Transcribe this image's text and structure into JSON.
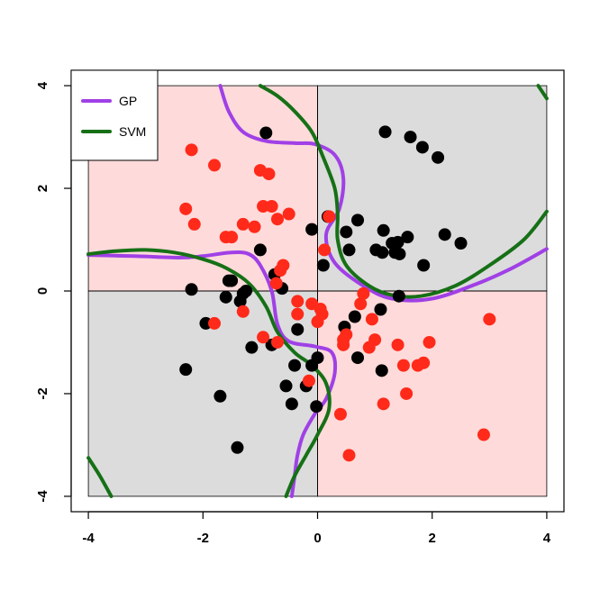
{
  "chart_data": {
    "type": "scatter",
    "title": "",
    "xlabel": "",
    "ylabel": "",
    "xlim": [
      -4.3,
      4.3
    ],
    "ylim": [
      -4.3,
      4.3
    ],
    "xticks": [
      -4,
      -2,
      0,
      2,
      4
    ],
    "yticks": [
      -4,
      -2,
      0,
      2,
      4
    ],
    "xtick_labels": [
      "-4",
      "-2",
      "0",
      "2",
      "4"
    ],
    "ytick_labels": [
      "-4",
      "-2",
      "0",
      "2",
      "4"
    ],
    "grid": false,
    "legend_position": "top-left",
    "regions": [
      {
        "class": "red",
        "x": [
          -4,
          0
        ],
        "y": [
          0,
          4
        ],
        "color": "#ffdada"
      },
      {
        "class": "black",
        "x": [
          0,
          4
        ],
        "y": [
          0,
          4
        ],
        "color": "#dcdcdc"
      },
      {
        "class": "black",
        "x": [
          -4,
          0
        ],
        "y": [
          -4,
          0
        ],
        "color": "#dcdcdc"
      },
      {
        "class": "red",
        "x": [
          0,
          4
        ],
        "y": [
          -4,
          0
        ],
        "color": "#ffdada"
      }
    ],
    "points": [
      {
        "name": "black",
        "color": "#000000",
        "x": [
          -0.9,
          1.18,
          1.62,
          1.83,
          2.1,
          -1.0,
          0.18,
          0.7,
          0.5,
          1.15,
          1.4,
          1.57,
          1.3,
          0.55,
          1.02,
          1.13,
          1.35,
          1.43,
          2.22,
          2.5,
          0.1,
          1.85,
          -0.1,
          -2.2,
          -1.55,
          -1.35,
          -1.3,
          -1.6,
          -0.75,
          -0.62,
          -1.5,
          -1.25,
          -0.35,
          -1.95,
          -1.15,
          -0.8,
          0.65,
          0.47,
          0.7,
          1.1,
          1.42,
          0.0,
          -0.1,
          -0.55,
          -0.4,
          -0.2,
          -0.45,
          -2.3,
          -1.7,
          -1.4,
          1.12,
          -0.02
        ],
        "y": [
          3.08,
          3.1,
          3.0,
          2.8,
          2.6,
          0.8,
          1.45,
          1.38,
          1.15,
          1.18,
          0.95,
          1.05,
          0.93,
          0.8,
          0.8,
          0.75,
          0.75,
          0.72,
          1.1,
          0.93,
          0.5,
          0.5,
          1.2,
          0.03,
          0.2,
          -0.2,
          -0.05,
          -0.12,
          0.32,
          0.05,
          0.2,
          0.0,
          -0.75,
          -0.63,
          -1.1,
          -1.05,
          -0.5,
          -0.7,
          -1.3,
          -0.36,
          -0.1,
          -1.3,
          -1.45,
          -1.85,
          -1.45,
          -1.85,
          -2.2,
          -1.53,
          -2.05,
          -3.05,
          -1.55,
          -2.25
        ]
      },
      {
        "name": "red",
        "color": "#ff2a1a",
        "x": [
          -2.2,
          -1.8,
          -1.5,
          -1.0,
          -0.85,
          -0.95,
          -0.8,
          -2.3,
          -2.15,
          -1.3,
          -1.1,
          -1.6,
          -0.5,
          -0.7,
          -0.65,
          -0.6,
          -0.72,
          -0.35,
          0.2,
          0.12,
          -0.35,
          0.08,
          -0.1,
          0.0,
          -1.3,
          -1.8,
          -0.95,
          -0.7,
          0.8,
          0.75,
          0.95,
          0.5,
          0.45,
          0.45,
          0.9,
          1.0,
          1.4,
          1.95,
          1.5,
          1.85,
          1.75,
          3.0,
          1.55,
          1.15,
          2.9,
          0.4,
          0.55,
          -0.15,
          0.05
        ],
        "y": [
          2.75,
          2.45,
          1.05,
          2.35,
          2.28,
          1.65,
          1.65,
          1.6,
          1.3,
          1.3,
          1.25,
          1.05,
          1.5,
          1.4,
          0.4,
          0.5,
          0.15,
          -0.2,
          1.45,
          0.8,
          -0.45,
          -0.45,
          -0.25,
          -0.6,
          -0.4,
          -0.63,
          -0.9,
          -1.0,
          -0.05,
          -0.25,
          -0.55,
          -0.85,
          -1.05,
          -0.95,
          -1.1,
          -0.95,
          -1.05,
          -1.0,
          -1.45,
          -1.4,
          -1.45,
          -0.55,
          -2.0,
          -2.2,
          -2.8,
          -2.4,
          -3.2,
          -1.75,
          -0.35
        ]
      }
    ],
    "series": [
      {
        "name": "GP",
        "color": "#a040e6",
        "segments": [
          [
            [
              -1.7,
              4.0
            ],
            [
              -1.55,
              3.5
            ],
            [
              -1.3,
              3.1
            ],
            [
              -0.9,
              2.92
            ],
            [
              -0.4,
              2.88
            ],
            [
              -0.05,
              2.86
            ],
            [
              0.3,
              2.65
            ],
            [
              0.45,
              2.2
            ],
            [
              0.38,
              1.6
            ],
            [
              0.15,
              1.1
            ],
            [
              0.3,
              0.55
            ],
            [
              0.8,
              0.1
            ],
            [
              1.3,
              -0.15
            ],
            [
              2.0,
              -0.15
            ],
            [
              2.8,
              0.15
            ],
            [
              3.4,
              0.45
            ],
            [
              4.0,
              0.82
            ]
          ],
          [
            [
              -4.0,
              0.7
            ],
            [
              -3.2,
              0.68
            ],
            [
              -2.4,
              0.65
            ],
            [
              -2.0,
              0.68
            ],
            [
              -1.5,
              0.75
            ],
            [
              -1.2,
              0.72
            ],
            [
              -1.0,
              0.5
            ],
            [
              -0.8,
              0.0
            ],
            [
              -0.7,
              -0.65
            ],
            [
              -0.5,
              -0.98
            ],
            [
              -0.05,
              -1.08
            ],
            [
              0.25,
              -1.2
            ],
            [
              0.3,
              -1.6
            ],
            [
              0.15,
              -2.1
            ],
            [
              -0.05,
              -2.4
            ],
            [
              -0.25,
              -2.8
            ],
            [
              -0.35,
              -3.2
            ],
            [
              -0.4,
              -3.6
            ],
            [
              -0.45,
              -4.0
            ]
          ]
        ]
      },
      {
        "name": "SVM",
        "color": "#167016",
        "segments": [
          [
            [
              -1.0,
              4.0
            ],
            [
              -0.7,
              3.8
            ],
            [
              -0.4,
              3.5
            ],
            [
              -0.1,
              3.1
            ],
            [
              0.1,
              2.6
            ],
            [
              0.3,
              2.0
            ],
            [
              0.35,
              1.5
            ],
            [
              0.35,
              1.0
            ],
            [
              0.5,
              0.5
            ],
            [
              0.9,
              0.1
            ],
            [
              1.3,
              -0.08
            ],
            [
              1.8,
              -0.1
            ],
            [
              2.4,
              0.1
            ],
            [
              3.0,
              0.5
            ],
            [
              3.6,
              1.0
            ],
            [
              4.0,
              1.55
            ]
          ],
          [
            [
              -4.0,
              0.72
            ],
            [
              -3.5,
              0.78
            ],
            [
              -3.0,
              0.8
            ],
            [
              -2.5,
              0.75
            ],
            [
              -2.0,
              0.62
            ],
            [
              -1.6,
              0.45
            ],
            [
              -1.2,
              0.15
            ],
            [
              -0.9,
              -0.3
            ],
            [
              -0.7,
              -0.8
            ],
            [
              -0.4,
              -1.2
            ],
            [
              -0.1,
              -1.45
            ],
            [
              0.15,
              -1.8
            ],
            [
              0.2,
              -2.3
            ],
            [
              0.0,
              -2.8
            ],
            [
              -0.2,
              -3.2
            ],
            [
              -0.4,
              -3.6
            ],
            [
              -0.55,
              -4.0
            ]
          ],
          [
            [
              3.85,
              4.0
            ],
            [
              4.0,
              3.75
            ]
          ],
          [
            [
              -4.0,
              -3.25
            ],
            [
              -3.8,
              -3.6
            ],
            [
              -3.6,
              -4.0
            ]
          ]
        ]
      }
    ]
  }
}
